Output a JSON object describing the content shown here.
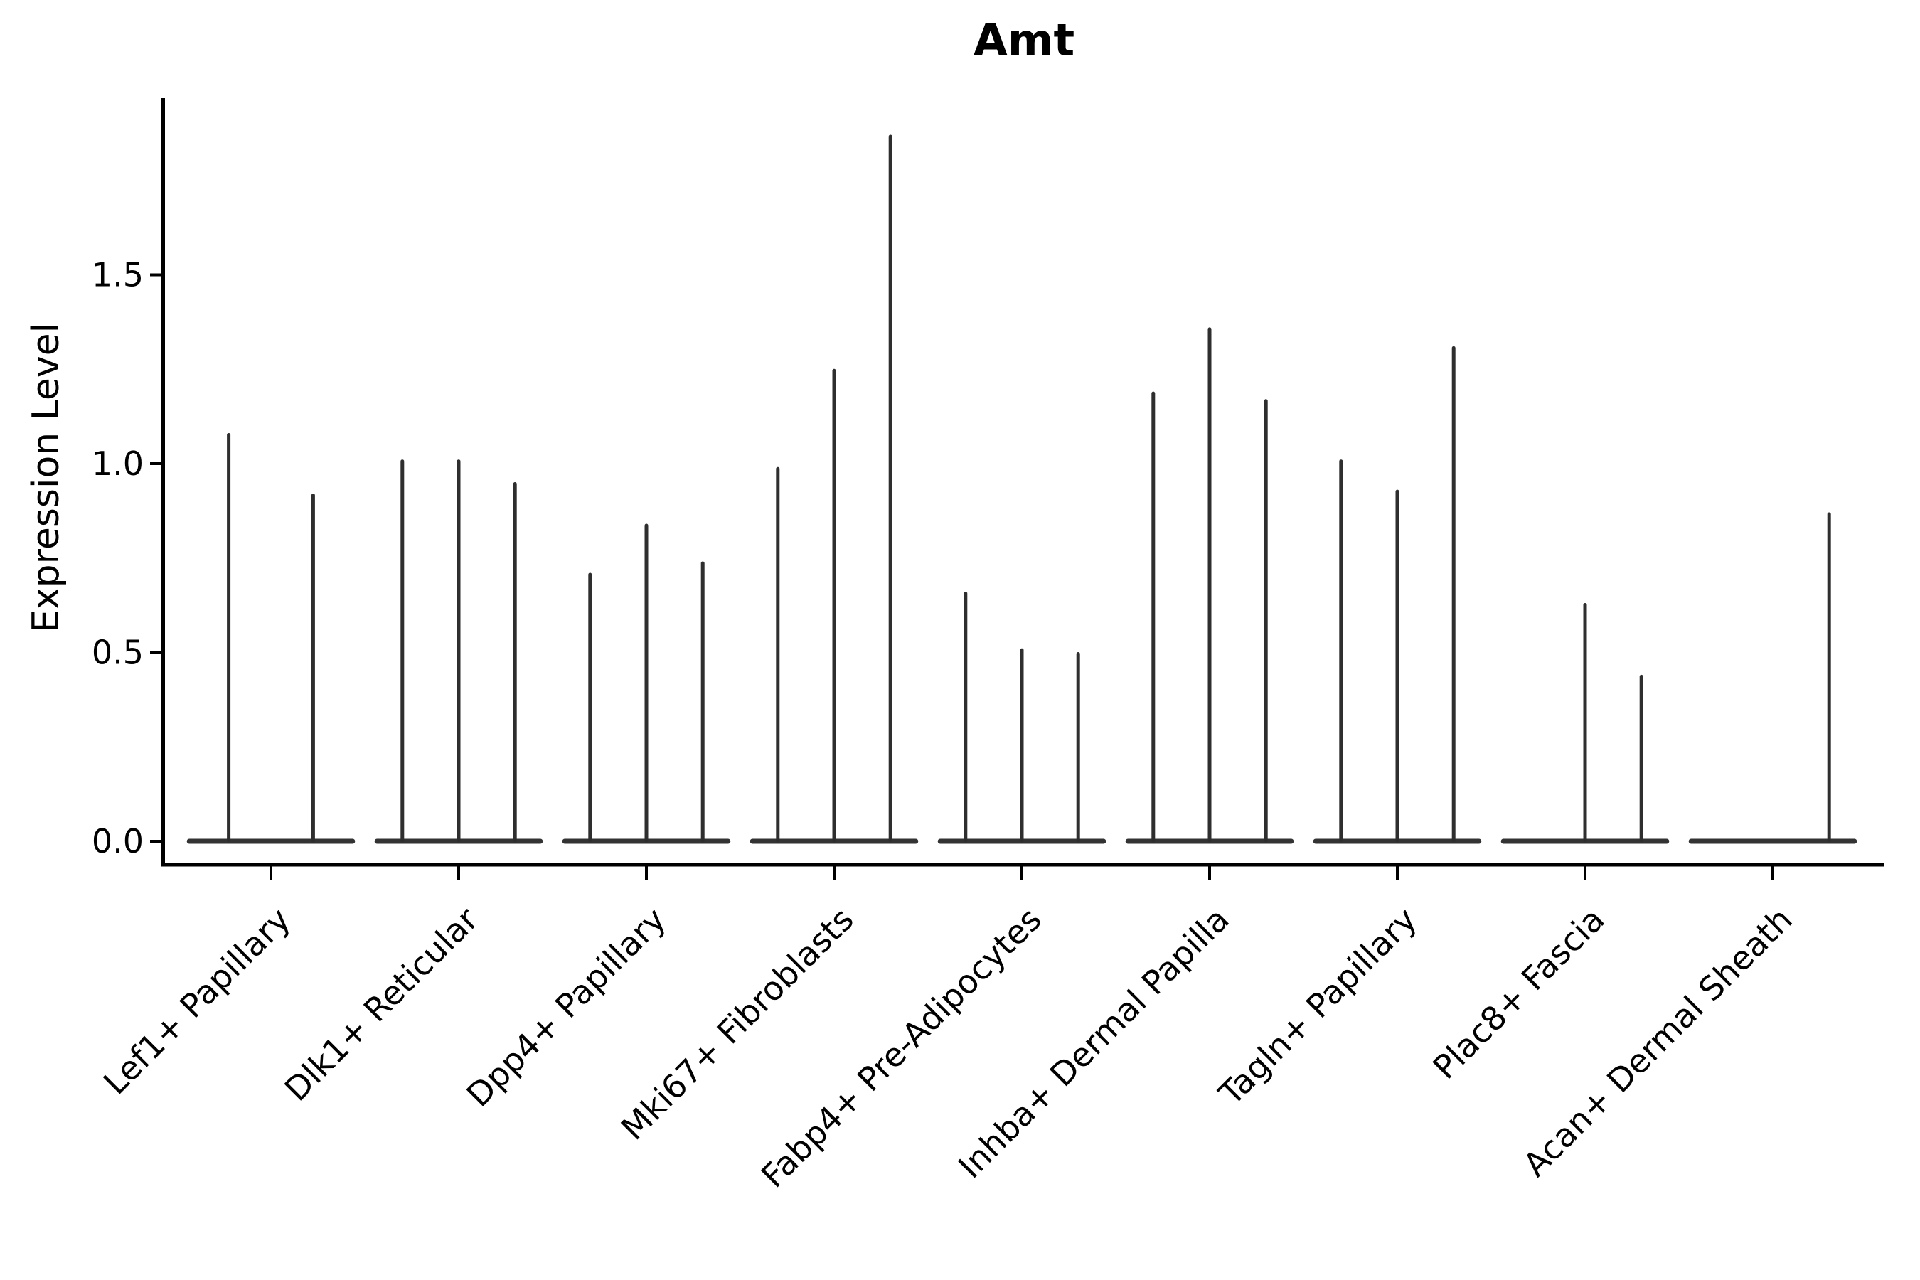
{
  "figure": {
    "background_color": "#ffffff",
    "axis_color": "#000000",
    "violin_color": "#2e2e2e",
    "violin_base_color": "#333333"
  },
  "chart_data": {
    "type": "violin",
    "title": "Amt",
    "xlabel": "",
    "ylabel": "Expression Level",
    "ylim": [
      0,
      1.96
    ],
    "yticks": [
      0.0,
      0.5,
      1.0,
      1.5
    ],
    "ytick_labels": [
      "0.0",
      "0.5",
      "1.0",
      "1.5"
    ],
    "grid": false,
    "legend_position": "none",
    "x_tick_rotation_degrees": 45,
    "categories": [
      "Lef1+ Papillary",
      "Dlk1+ Reticular",
      "Dpp4+ Papillary",
      "Mki67+ Fibroblasts",
      "Fabp4+ Pre-Adipocytes",
      "Inhba+ Dermal Papilla",
      "Tagln+ Papillary",
      "Plac8+ Fascia",
      "Acan+ Dermal Sheath"
    ],
    "violins": [
      {
        "category": "Lef1+ Papillary",
        "spike_maxima": [
          1.08,
          0.92
        ]
      },
      {
        "category": "Dlk1+ Reticular",
        "spike_maxima": [
          1.01,
          1.01,
          0.95
        ]
      },
      {
        "category": "Dpp4+ Papillary",
        "spike_maxima": [
          0.71,
          0.84,
          0.74
        ]
      },
      {
        "category": "Mki67+ Fibroblasts",
        "spike_maxima": [
          0.99,
          1.25,
          1.87
        ]
      },
      {
        "category": "Fabp4+ Pre-Adipocytes",
        "spike_maxima": [
          0.66,
          0.51,
          0.5
        ]
      },
      {
        "category": "Inhba+ Dermal Papilla",
        "spike_maxima": [
          1.19,
          1.36,
          1.17
        ]
      },
      {
        "category": "Tagln+ Papillary",
        "spike_maxima": [
          1.01,
          0.93,
          1.31
        ]
      },
      {
        "category": "Plac8+ Fascia",
        "spike_maxima": [
          0.0,
          0.63,
          0.44
        ]
      },
      {
        "category": "Acan+ Dermal Sheath",
        "spike_maxima": [
          0.0,
          0.0,
          0.87
        ]
      }
    ]
  }
}
